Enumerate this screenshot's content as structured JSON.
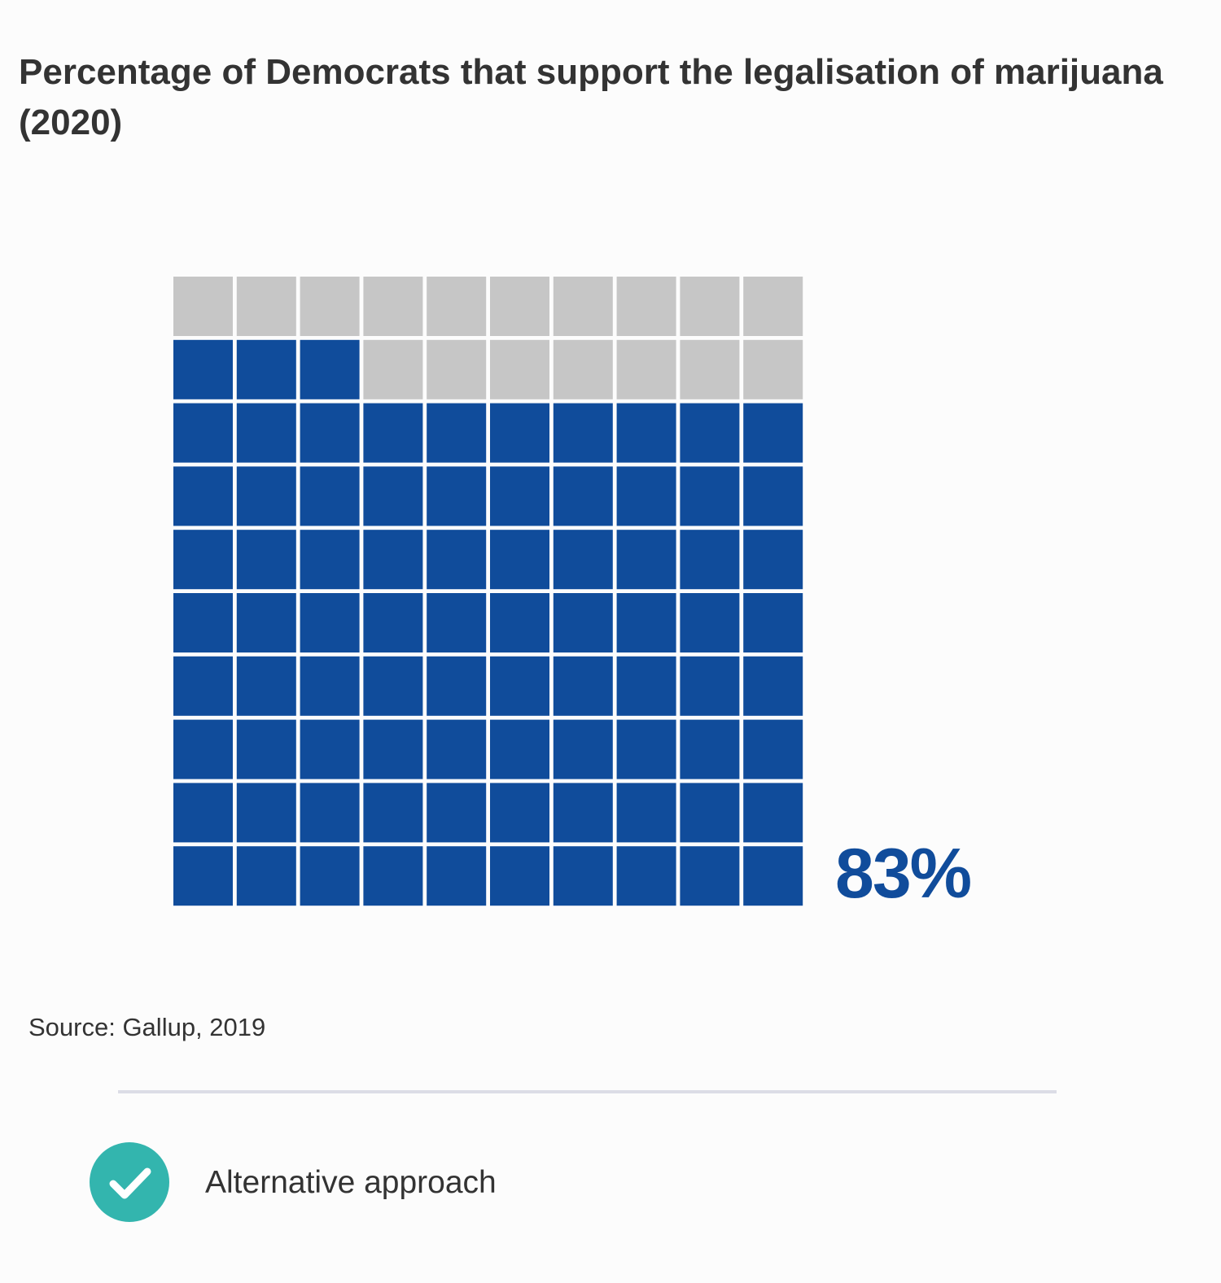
{
  "chart_data": {
    "type": "waffle",
    "title": "Percentage of Democrats that support the legalisation of marijuana (2020)",
    "value_percent": 83,
    "value_label": "83%",
    "grid": {
      "rows": 10,
      "cols": 10
    },
    "fill_order": "bottom-to-top, left-to-right",
    "colors": {
      "filled": "#104c9b",
      "empty": "#c6c6c6"
    },
    "source": "Source: Gallup, 2019"
  },
  "footer": {
    "approach_label": "Alternative approach",
    "approach_icon": "check-icon",
    "approach_color": "#33b5ae"
  }
}
